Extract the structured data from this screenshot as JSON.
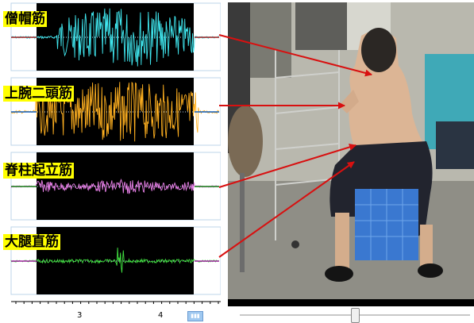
{
  "muscles": [
    {
      "label": "僧帽筋",
      "color": "#40e8f0"
    },
    {
      "label": "上腕二頭筋",
      "color": "#ffb020"
    },
    {
      "label": "脊柱起立筋",
      "color": "#e880e8"
    },
    {
      "label": "大腿直筋",
      "color": "#40e040"
    }
  ],
  "time_axis": {
    "ticks": [
      "3",
      "4"
    ]
  },
  "arrow_color": "#d81010",
  "video": {
    "seek_position": 0.5
  }
}
